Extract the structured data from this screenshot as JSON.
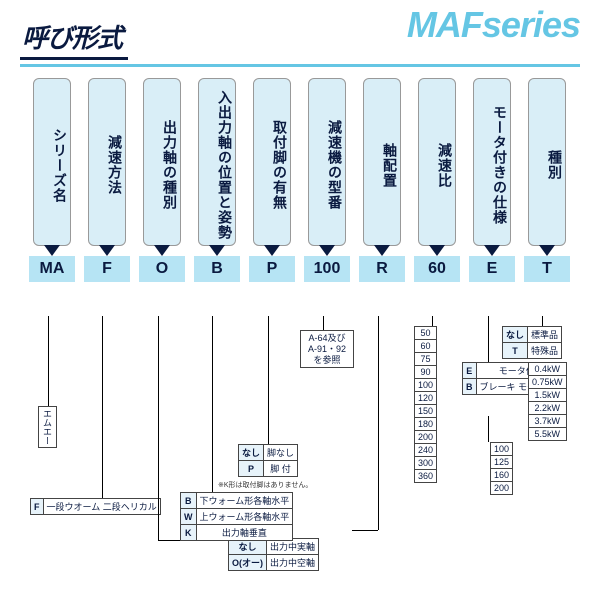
{
  "header": {
    "title": "呼び形式",
    "series": "MAFseries"
  },
  "columns": [
    {
      "label": "シリーズ名",
      "code": "MA"
    },
    {
      "label": "減速方法",
      "code": "F"
    },
    {
      "label": "出力軸の種別",
      "code": "O"
    },
    {
      "label": "入出力軸の位置と姿勢",
      "code": "B"
    },
    {
      "label": "取付脚の有無",
      "code": "P"
    },
    {
      "label": "減速機の型番",
      "code": "100"
    },
    {
      "label": "軸配置",
      "code": "R"
    },
    {
      "label": "減速比",
      "code": "60"
    },
    {
      "label": "モータ付きの仕様",
      "code": "E"
    },
    {
      "label": "種別",
      "code": "T"
    }
  ],
  "leaves": {
    "ma": "エムエー",
    "f_rows": [
      [
        "F",
        "一段ウオーム 二段ヘリカル"
      ]
    ],
    "o_rows": [
      [
        "なし",
        "出力中実軸"
      ],
      [
        "O(オー)",
        "出力中空軸"
      ]
    ],
    "b_rows": [
      [
        "B",
        "下ウォーム形各軸水平"
      ],
      [
        "W",
        "上ウォーム形各軸水平"
      ],
      [
        "K",
        "出力軸垂直"
      ]
    ],
    "b_note": "※K形は取付脚はありません。",
    "p_rows": [
      [
        "なし",
        "脚なし"
      ],
      [
        "P",
        "脚 付"
      ]
    ],
    "ref_100": "A-64及び A-91・92 を参照",
    "ratio_list": [
      "50",
      "60",
      "75",
      "90",
      "100",
      "120",
      "150",
      "180",
      "200",
      "240",
      "300",
      "360"
    ],
    "e_rows": [
      [
        "E",
        "モータ付"
      ],
      [
        "B",
        "ブレーキ モータ付"
      ]
    ],
    "e_kw": [
      "0.4kW",
      "0.75kW",
      "1.5kW",
      "2.2kW",
      "3.7kW",
      "5.5kW"
    ],
    "e_frame": [
      "100",
      "125",
      "160",
      "200"
    ],
    "t_rows": [
      [
        "なし",
        "標準品"
      ],
      [
        "T",
        "特殊品"
      ]
    ]
  },
  "colors": {
    "accent": "#65c6e4",
    "light": "#b6e4f4",
    "paler": "#d9eef7",
    "ink": "#0a1a40"
  }
}
